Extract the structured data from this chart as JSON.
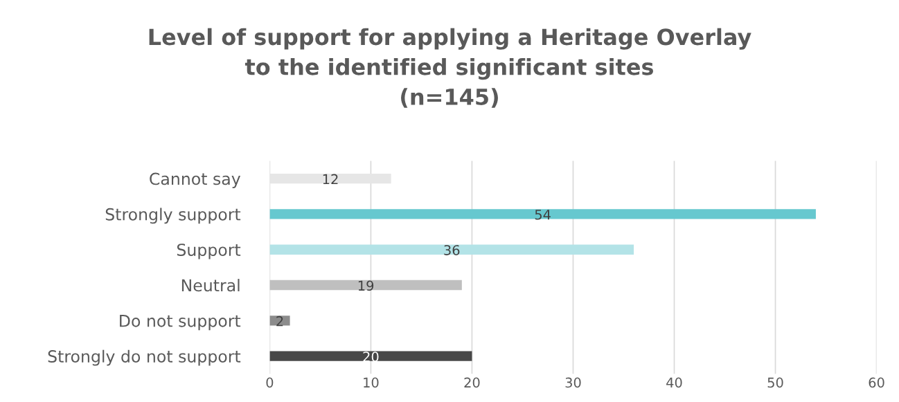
{
  "chart_data": {
    "type": "bar",
    "orientation": "horizontal",
    "title": "Level of support for applying a Heritage Overlay\nto the identified significant sites\n(n=145)",
    "categories": [
      "Cannot say",
      "Strongly support",
      "Support",
      "Neutral",
      "Do not support",
      "Strongly do not support"
    ],
    "values": [
      12,
      54,
      36,
      19,
      2,
      20
    ],
    "colors": [
      "#e6e6e6",
      "#66c8cf",
      "#b3e3e7",
      "#bfbfbf",
      "#8c8c8c",
      "#474747"
    ],
    "xlim": [
      0,
      60
    ],
    "xticks": [
      0,
      10,
      20,
      30,
      40,
      50,
      60
    ],
    "grid": "x",
    "data_labels": true
  }
}
